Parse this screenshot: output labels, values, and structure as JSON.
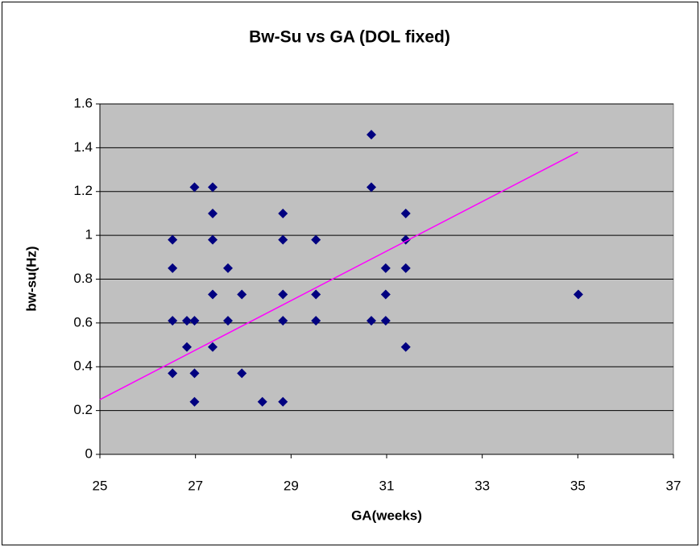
{
  "chart_data": {
    "type": "scatter",
    "title": "Bw-Su vs GA (DOL fixed)",
    "x_label": "GA(weeks)",
    "y_label": "bw-su(Hz)",
    "xlim": [
      25,
      37
    ],
    "xticks": [
      25,
      27,
      29,
      31,
      33,
      35,
      37
    ],
    "ylim": [
      0,
      1.6
    ],
    "yticks": [
      0,
      0.2,
      0.4,
      0.6,
      0.8,
      1,
      1.2,
      1.4,
      1.6
    ],
    "grid": true,
    "plot_background": "#c0c0c0",
    "series": [
      {
        "type": "scatter",
        "color": "#000080",
        "x": [
          26.52,
          26.52,
          26.52,
          26.52,
          26.82,
          26.82,
          26.98,
          26.98,
          26.98,
          26.98,
          27.36,
          27.36,
          27.36,
          27.36,
          27.36,
          27.68,
          27.68,
          27.97,
          27.97,
          28.4,
          28.83,
          28.83,
          28.83,
          28.83,
          28.83,
          29.52,
          29.52,
          29.52,
          30.68,
          30.68,
          30.68,
          30.98,
          30.98,
          30.98,
          31.4,
          31.4,
          31.4,
          31.4,
          35.01
        ],
        "values": [
          0.98,
          0.85,
          0.61,
          0.37,
          0.61,
          0.49,
          1.22,
          0.61,
          0.37,
          0.24,
          1.22,
          1.1,
          0.98,
          0.73,
          0.49,
          0.85,
          0.61,
          0.73,
          0.37,
          0.24,
          1.1,
          0.98,
          0.73,
          0.61,
          0.24,
          0.98,
          0.73,
          0.61,
          1.46,
          1.22,
          0.61,
          0.85,
          0.73,
          0.61,
          1.1,
          0.98,
          0.85,
          0.49,
          0.73
        ]
      },
      {
        "type": "line",
        "color": "#ff00ff",
        "x": [
          25,
          35
        ],
        "values": [
          0.25,
          1.38
        ]
      }
    ]
  }
}
